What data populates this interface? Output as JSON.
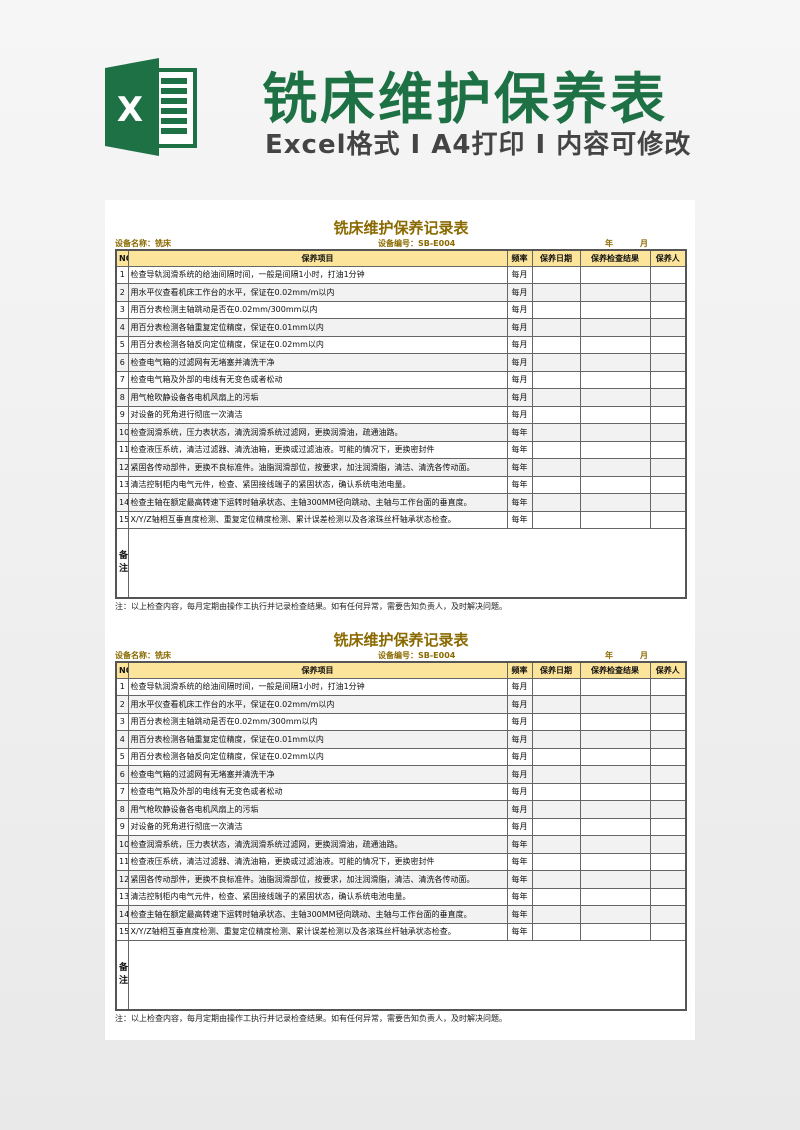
{
  "banner": {
    "title": "铣床维护保养表",
    "subtitle": "Excel格式 I A4打印 I 内容可修改",
    "logo_letter": "X",
    "brand_color": "#1e7145"
  },
  "sheet": {
    "title": "铣床维护保养记录表",
    "device_name": "设备名称：铣床",
    "device_no": "设备编号：SB-E004",
    "year": "年",
    "month": "月",
    "headers": [
      "NO",
      "保养项目",
      "频率",
      "保养日期",
      "保养检查结果",
      "保养人"
    ],
    "rows": [
      {
        "no": "1",
        "item": "检查导轨润滑系统的给油间隔时间，一般是间隔1小时，打油1分钟",
        "freq": "每月"
      },
      {
        "no": "2",
        "item": "用水平仪查看机床工作台的水平，保证在0.02mm/m以内",
        "freq": "每月"
      },
      {
        "no": "3",
        "item": "用百分表检测主轴跳动是否在0.02mm/300mm以内",
        "freq": "每月"
      },
      {
        "no": "4",
        "item": "用百分表检测各轴重复定位精度，保证在0.01mm以内",
        "freq": "每月"
      },
      {
        "no": "5",
        "item": "用百分表检测各轴反向定位精度，保证在0.02mm以内",
        "freq": "每月"
      },
      {
        "no": "6",
        "item": "检查电气箱的过滤网有无堵塞并清洗干净",
        "freq": "每月"
      },
      {
        "no": "7",
        "item": "检查电气箱及外部的电线有无变色或者松动",
        "freq": "每月"
      },
      {
        "no": "8",
        "item": "用气枪吹静设备各电机风扇上的污垢",
        "freq": "每月"
      },
      {
        "no": "9",
        "item": "对设备的死角进行彻底一次清洁",
        "freq": "每月"
      },
      {
        "no": "10",
        "item": "检查润滑系统，压力表状态，清洗润滑系统过滤网，更换润滑油，疏通油路。",
        "freq": "每年"
      },
      {
        "no": "11",
        "item": "检查液压系统，清洁过滤器、清洗油箱，更换或过滤油液。可能的情况下，更换密封件",
        "freq": "每年"
      },
      {
        "no": "12",
        "item": "紧固各传动部件，更换不良标准件。油脂润滑部位，按要求，加注润滑脂，清洁、清洗各传动面。",
        "freq": "每年"
      },
      {
        "no": "13",
        "item": "清洁控制柜内电气元件，检查、紧固接线端子的紧固状态，确认系统电池电量。",
        "freq": "每年"
      },
      {
        "no": "14",
        "item": "检查主轴在额定最高转速下运转时轴承状态、主轴300MM径向跳动、主轴与工作台面的垂直度。",
        "freq": "每年"
      },
      {
        "no": "15",
        "item": "X/Y/Z轴相互垂直度检测、重复定位精度检测、累计误差检测以及各滚珠丝杆轴承状态检查。",
        "freq": "每年"
      }
    ],
    "remarks_label": "备注",
    "note": "注：以上检查内容，每月定期由操作工执行并记录检查结果。如有任何异常，需要告知负责人，及时解决问题。"
  }
}
